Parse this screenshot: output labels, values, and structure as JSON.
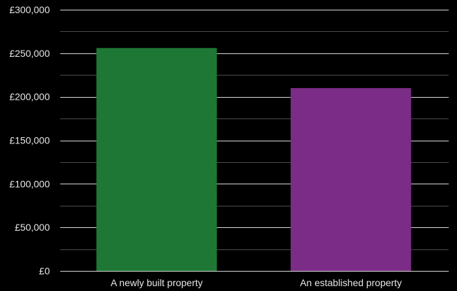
{
  "chart_data": {
    "type": "bar",
    "title": "",
    "xlabel": "",
    "ylabel": "",
    "categories": [
      "A newly built property",
      "An established property"
    ],
    "values": [
      256000,
      210000
    ],
    "bar_colors": [
      "#1e7735",
      "#7b2c86"
    ],
    "ylim": [
      0,
      300000
    ],
    "yticks": [
      0,
      50000,
      100000,
      150000,
      200000,
      250000,
      300000
    ],
    "ytick_labels": [
      "£0",
      "£50,000",
      "£100,000",
      "£150,000",
      "£200,000",
      "£250,000",
      "£300,000"
    ],
    "grid": true,
    "background": "#000000",
    "grid_color": "#ffffff"
  }
}
